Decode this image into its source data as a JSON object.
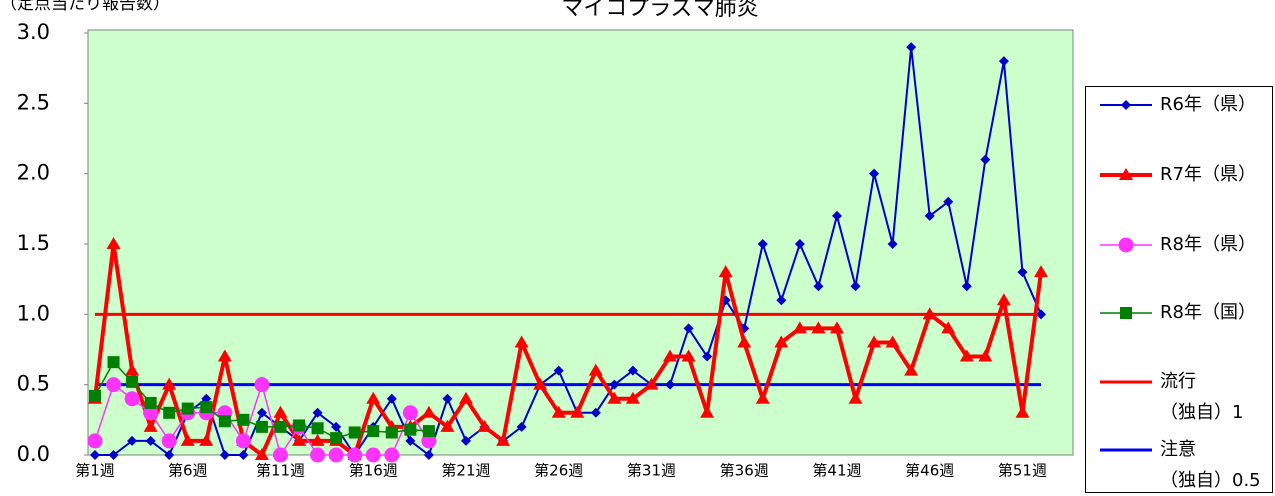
{
  "chart_data": {
    "type": "line",
    "title": "マイコプラズマ肺炎",
    "subtitle": "（定点当たり報告数）",
    "categories": [
      "第1週",
      null,
      null,
      null,
      null,
      "第6週",
      null,
      null,
      null,
      null,
      "第11週",
      null,
      null,
      null,
      null,
      "第16週",
      null,
      null,
      null,
      null,
      "第21週",
      null,
      null,
      null,
      null,
      "第26週",
      null,
      null,
      null,
      null,
      "第31週",
      null,
      null,
      null,
      null,
      "第36週",
      null,
      null,
      null,
      null,
      "第41週",
      null,
      null,
      null,
      null,
      "第46週",
      null,
      null,
      null,
      null,
      "第51週",
      null
    ],
    "series": [
      {
        "name": "R6年（県）",
        "color": "#0000cc",
        "marker": "diamond",
        "values": [
          0,
          0,
          0.1,
          0.1,
          0,
          0.3,
          0.4,
          0,
          0,
          0.3,
          0.2,
          0.1,
          0.3,
          0.2,
          0,
          0.2,
          0.4,
          0.1,
          0,
          0.4,
          0.1,
          0.2,
          0.1,
          0.2,
          0.5,
          0.6,
          0.3,
          0.3,
          0.5,
          0.6,
          0.5,
          0.5,
          0.9,
          0.7,
          1.1,
          0.9,
          1.5,
          1.1,
          1.5,
          1.2,
          1.7,
          1.2,
          2.0,
          1.5,
          2.9,
          1.7,
          1.8,
          1.2,
          2.1,
          2.8,
          1.3,
          1.0
        ]
      },
      {
        "name": "R7年（県）",
        "color": "#ff0000",
        "marker": "triangle",
        "values": [
          0.4,
          1.5,
          0.6,
          0.2,
          0.5,
          0.1,
          0.1,
          0.7,
          0.1,
          0,
          0.3,
          0.1,
          0.1,
          0.1,
          0,
          0.4,
          0.2,
          0.2,
          0.3,
          0.2,
          0.4,
          0.2,
          0.1,
          0.8,
          0.5,
          0.3,
          0.3,
          0.6,
          0.4,
          0.4,
          0.5,
          0.7,
          0.7,
          0.3,
          1.3,
          0.8,
          0.4,
          0.8,
          0.9,
          0.9,
          0.9,
          0.4,
          0.8,
          0.8,
          0.6,
          1.0,
          0.9,
          0.7,
          0.7,
          1.1,
          0.3,
          1.3
        ]
      },
      {
        "name": "R8年（県）",
        "color": "#ff33ff",
        "marker": "circle",
        "values": [
          0.1,
          0.5,
          0.4,
          0.3,
          0.1,
          0.3,
          0.3,
          0.3,
          0.1,
          0.5,
          0,
          0.2,
          0,
          0,
          0,
          0,
          0,
          0.3,
          0.1,
          null,
          null,
          null,
          null,
          null,
          null,
          null,
          null,
          null,
          null,
          null,
          null,
          null,
          null,
          null,
          null,
          null,
          null,
          null,
          null,
          null,
          null,
          null,
          null,
          null,
          null,
          null,
          null,
          null,
          null,
          null,
          null,
          null
        ]
      },
      {
        "name": "R8年（国）",
        "color": "#008000",
        "marker": "square",
        "values": [
          0.42,
          0.66,
          0.52,
          0.37,
          0.3,
          0.33,
          0.34,
          0.24,
          0.25,
          0.2,
          0.2,
          0.21,
          0.19,
          0.12,
          0.16,
          0.17,
          0.16,
          0.18,
          0.17,
          null,
          null,
          null,
          null,
          null,
          null,
          null,
          null,
          null,
          null,
          null,
          null,
          null,
          null,
          null,
          null,
          null,
          null,
          null,
          null,
          null,
          null,
          null,
          null,
          null,
          null,
          null,
          null,
          null,
          null,
          null,
          null,
          null
        ]
      }
    ],
    "reference_lines": [
      {
        "name": "流行\n（独自）1",
        "color": "#ff0000",
        "value": 1
      },
      {
        "name": "注意\n（独自）0.5",
        "color": "#0000ff",
        "value": 0.5
      }
    ],
    "ylim": [
      0,
      3
    ],
    "yticks": [
      {
        "value": 0,
        "label": "0.0"
      },
      {
        "value": 0.5,
        "label": "0.5"
      },
      {
        "value": 1,
        "label": "1.0"
      },
      {
        "value": 1.5,
        "label": "1.5"
      },
      {
        "value": 2,
        "label": "2.0"
      },
      {
        "value": 2.5,
        "label": "2.5"
      },
      {
        "value": 3,
        "label": "3.0"
      }
    ],
    "grid": false,
    "background": "#ccffcc",
    "legend": "right"
  }
}
